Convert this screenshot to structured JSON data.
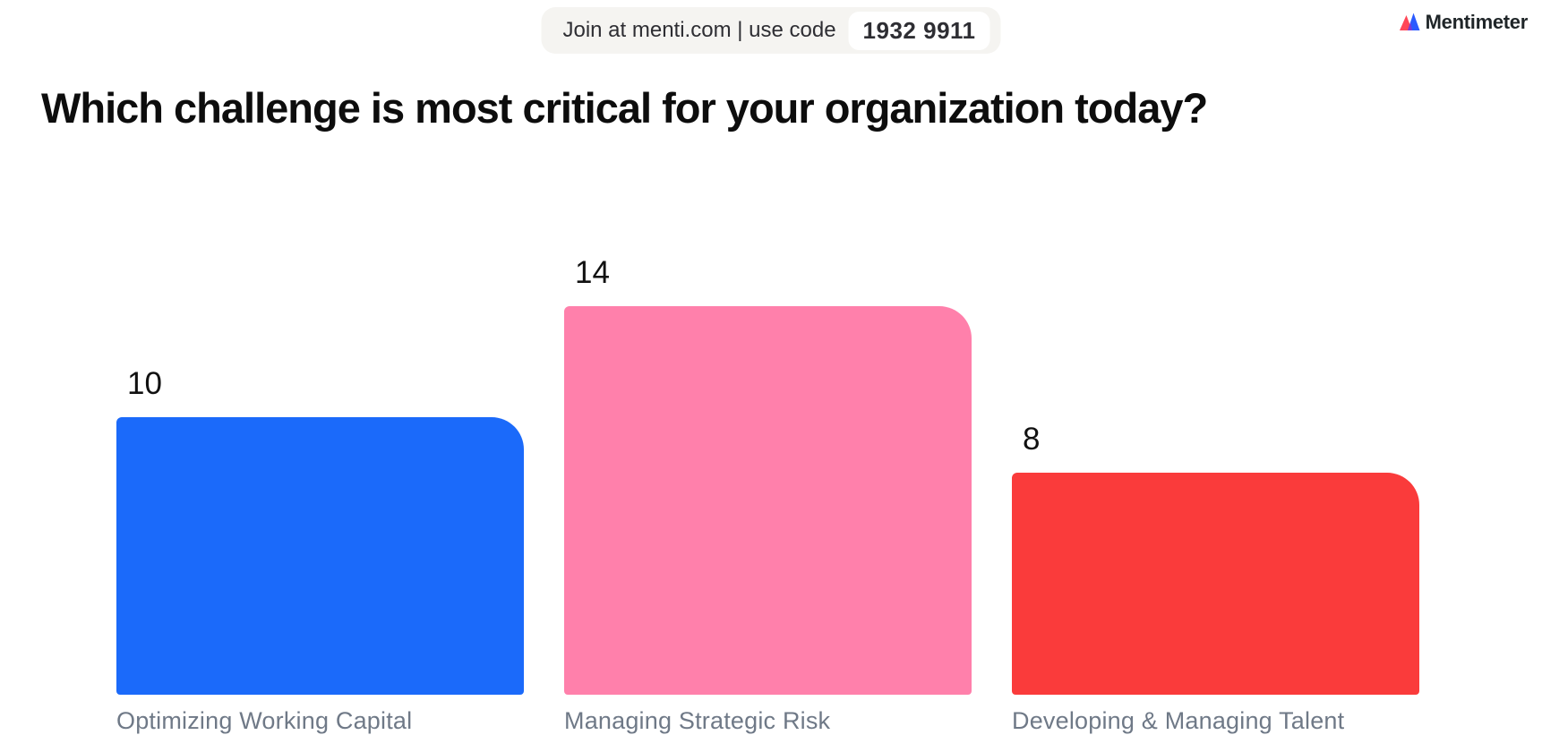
{
  "join_bar": {
    "text": "Join at menti.com | use code",
    "code": "1932 9911"
  },
  "brand": {
    "name": "Mentimeter",
    "icon_colors": {
      "left_peak": "#ff4757",
      "right_peak": "#2b5bff"
    }
  },
  "question": "Which challenge is most critical for your organization today?",
  "chart_data": {
    "type": "bar",
    "title": "Which challenge is most critical for your organization today?",
    "categories": [
      "Optimizing Working Capital",
      "Managing Strategic Risk",
      "Developing & Managing Talent"
    ],
    "values": [
      10,
      14,
      8
    ],
    "bar_colors": [
      "#1b6afa",
      "#ff80ab",
      "#fa3b3b"
    ],
    "value_label_color": "#111111",
    "category_label_color": "#6f7987",
    "ylim": [
      0,
      14
    ],
    "grid": false,
    "legend": false,
    "value_labels_shown": true,
    "orientation": "vertical"
  }
}
